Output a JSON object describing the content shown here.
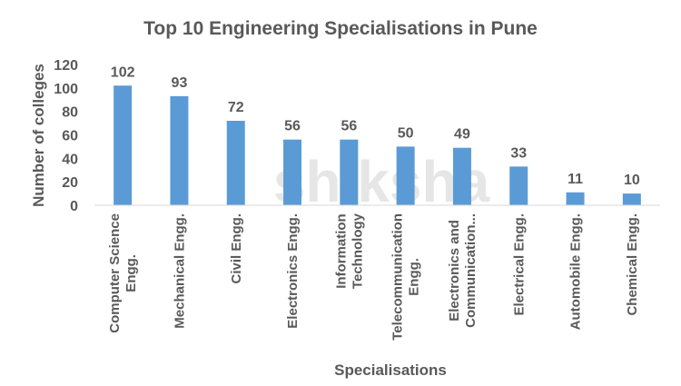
{
  "chart_data": {
    "type": "bar",
    "title": "Top 10 Engineering Specialisations in Pune",
    "xlabel": "Specialisations",
    "ylabel": "Number of colleges",
    "ylim": [
      0,
      120
    ],
    "yticks": [
      0,
      20,
      40,
      60,
      80,
      100,
      120
    ],
    "grid": false,
    "categories": [
      "Computer Science Engg.",
      "Mechanical Engg.",
      "Civil Engg.",
      "Electronics Engg.",
      "Information Technology",
      "Telecommunication Engg.",
      "Electronics and Communication...",
      "Electrical Engg.",
      "Automobile Engg.",
      "Chemical Engg."
    ],
    "category_lines": [
      [
        "Computer Science",
        "Engg."
      ],
      [
        "Mechanical Engg."
      ],
      [
        "Civil Engg."
      ],
      [
        "Electronics Engg."
      ],
      [
        "Information",
        "Technology"
      ],
      [
        "Telecommunication",
        "Engg."
      ],
      [
        "Electronics and",
        "Communication..."
      ],
      [
        "Electrical Engg."
      ],
      [
        "Automobile Engg."
      ],
      [
        "Chemical Engg."
      ]
    ],
    "values": [
      102,
      93,
      72,
      56,
      56,
      50,
      49,
      33,
      11,
      10
    ],
    "data_labels": true,
    "bar_color": "#5b9bd5"
  },
  "watermark": "shiksha"
}
